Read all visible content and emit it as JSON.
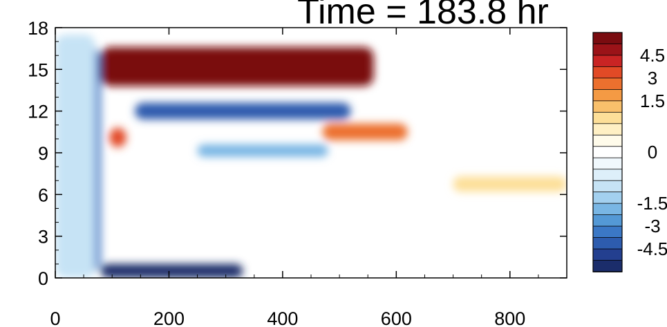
{
  "chart_data": {
    "type": "heatmap",
    "title": "Time = 183.8 hr",
    "xlabel": "",
    "ylabel": "",
    "xlim": [
      0,
      900
    ],
    "ylim": [
      0,
      18
    ],
    "x_ticks": [
      0,
      200,
      400,
      600,
      800
    ],
    "y_ticks": [
      0,
      3,
      6,
      9,
      12,
      15,
      18
    ],
    "x_tick_labels": [
      "0",
      "200",
      "400",
      "600",
      "800"
    ],
    "y_tick_labels": [
      "0",
      "3",
      "6",
      "9",
      "12",
      "15",
      "18"
    ],
    "colorbar": {
      "levels": [
        -5.25,
        -4.5,
        -3.75,
        -3,
        -2.25,
        -1.5,
        -1.05,
        -0.75,
        -0.45,
        -0.15,
        0.15,
        0.45,
        0.75,
        1.05,
        1.5,
        2.25,
        3,
        3.75,
        4.5,
        5.25
      ],
      "colors": [
        "#1b2d6b",
        "#233f8f",
        "#2d5cae",
        "#3b78c6",
        "#5499d6",
        "#79b6e4",
        "#a3d0ef",
        "#c6e3f5",
        "#ddeffa",
        "#f0f8fd",
        "#ffffff",
        "#fffbea",
        "#fff0c4",
        "#fddf98",
        "#f9c06b",
        "#f49a44",
        "#ec702e",
        "#e24a26",
        "#c92424",
        "#9b1318",
        "#7a0c10"
      ],
      "tick_labels": [
        "4.5",
        "3",
        "1.5",
        "0",
        "-1.5",
        "-3",
        "-4.5"
      ],
      "tick_values": [
        4.5,
        3,
        1.5,
        0,
        -1.5,
        -3,
        -4.5
      ]
    },
    "features": [
      {
        "x": [
          80,
          560
        ],
        "y": [
          13.8,
          16.6
        ],
        "value": 5.4
      },
      {
        "x": [
          140,
          520
        ],
        "y": [
          11.4,
          12.6
        ],
        "value": -4.2
      },
      {
        "x": [
          80,
          330
        ],
        "y": [
          0.0,
          1.0
        ],
        "value": -5.3
      },
      {
        "x": [
          470,
          620
        ],
        "y": [
          9.9,
          11.1
        ],
        "value": 2.6
      },
      {
        "x": [
          95,
          125
        ],
        "y": [
          9.4,
          10.8
        ],
        "value": 3.3
      },
      {
        "x": [
          250,
          480
        ],
        "y": [
          8.7,
          9.6
        ],
        "value": -2.2
      },
      {
        "x": [
          60,
          80
        ],
        "y": [
          0.5,
          16.5
        ],
        "value": -3.6
      },
      {
        "x": [
          700,
          900
        ],
        "y": [
          6.2,
          7.3
        ],
        "value": 1.0
      },
      {
        "x": [
          0,
          70
        ],
        "y": [
          0.0,
          17.5
        ],
        "value": -0.8
      }
    ]
  }
}
